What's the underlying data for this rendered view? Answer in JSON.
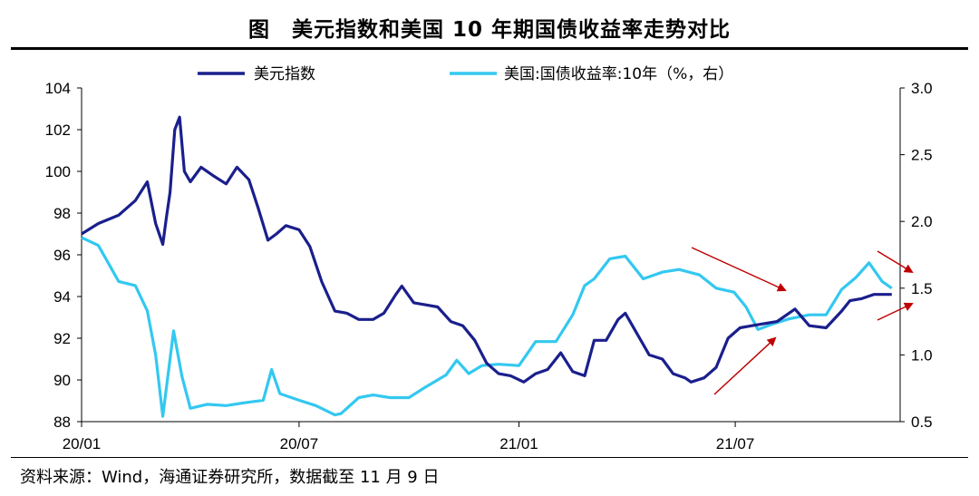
{
  "title": "图　美元指数和美国 10 年期国债收益率走势对比",
  "source": "资料来源：Wind，海通证券研究所，数据截至 11 月 9 日",
  "chart_data": {
    "type": "line",
    "x_ticks": [
      "20/01",
      "20/07",
      "21/01",
      "21/07"
    ],
    "y_left": {
      "min": 88,
      "max": 104,
      "ticks": [
        "88",
        "90",
        "92",
        "94",
        "96",
        "98",
        "100",
        "102",
        "104"
      ]
    },
    "y_right": {
      "min": 0.5,
      "max": 3.0,
      "ticks": [
        "0.5",
        "1.0",
        "1.5",
        "2.0",
        "2.5",
        "3.0"
      ]
    },
    "grid": false,
    "legend_position": "top",
    "series": [
      {
        "name": "美元指数",
        "axis": "left",
        "color": "#1a1f8c",
        "x": [
          "2020-01-01",
          "2020-01-15",
          "2020-02-01",
          "2020-02-15",
          "2020-02-25",
          "2020-03-03",
          "2020-03-09",
          "2020-03-12",
          "2020-03-15",
          "2020-03-19",
          "2020-03-23",
          "2020-03-27",
          "2020-04-01",
          "2020-04-10",
          "2020-04-20",
          "2020-05-01",
          "2020-05-10",
          "2020-05-20",
          "2020-05-28",
          "2020-06-05",
          "2020-06-12",
          "2020-06-20",
          "2020-07-01",
          "2020-07-10",
          "2020-07-20",
          "2020-07-31",
          "2020-08-10",
          "2020-08-20",
          "2020-09-01",
          "2020-09-10",
          "2020-09-20",
          "2020-09-25",
          "2020-10-05",
          "2020-10-15",
          "2020-10-25",
          "2020-11-05",
          "2020-11-15",
          "2020-11-25",
          "2020-12-05",
          "2020-12-15",
          "2020-12-25",
          "2021-01-05",
          "2021-01-15",
          "2021-01-25",
          "2021-02-05",
          "2021-02-15",
          "2021-02-25",
          "2021-03-05",
          "2021-03-15",
          "2021-03-25",
          "2021-03-31",
          "2021-04-10",
          "2021-04-20",
          "2021-05-01",
          "2021-05-10",
          "2021-05-20",
          "2021-05-25",
          "2021-06-05",
          "2021-06-15",
          "2021-06-25",
          "2021-07-05",
          "2021-07-15",
          "2021-07-25",
          "2021-08-05",
          "2021-08-15",
          "2021-08-20",
          "2021-09-01",
          "2021-09-15",
          "2021-09-28",
          "2021-10-05",
          "2021-10-15",
          "2021-10-25",
          "2021-11-09"
        ],
        "values": [
          97.0,
          97.5,
          97.9,
          98.6,
          99.5,
          97.5,
          96.5,
          97.8,
          99.0,
          102.0,
          102.6,
          100.0,
          99.5,
          100.2,
          99.8,
          99.4,
          100.2,
          99.6,
          98.2,
          96.7,
          97.0,
          97.4,
          97.2,
          96.4,
          94.7,
          93.3,
          93.2,
          92.9,
          92.9,
          93.2,
          94.1,
          94.5,
          93.7,
          93.6,
          93.5,
          92.8,
          92.6,
          91.9,
          90.8,
          90.3,
          90.2,
          89.9,
          90.3,
          90.5,
          91.3,
          90.4,
          90.2,
          91.9,
          91.9,
          92.9,
          93.2,
          92.2,
          91.2,
          91.0,
          90.3,
          90.1,
          89.9,
          90.1,
          90.6,
          92.0,
          92.5,
          92.6,
          92.7,
          92.8,
          93.2,
          93.4,
          92.6,
          92.5,
          93.3,
          93.8,
          93.9,
          94.1,
          94.1
        ]
      },
      {
        "name": "美国:国债收益率:10年（%，右）",
        "axis": "right",
        "color": "#33c8f0",
        "x": [
          "2020-01-01",
          "2020-01-15",
          "2020-02-01",
          "2020-02-15",
          "2020-02-25",
          "2020-03-03",
          "2020-03-09",
          "2020-03-18",
          "2020-03-25",
          "2020-04-01",
          "2020-04-15",
          "2020-05-01",
          "2020-05-15",
          "2020-06-01",
          "2020-06-08",
          "2020-06-15",
          "2020-07-01",
          "2020-07-15",
          "2020-07-31",
          "2020-08-05",
          "2020-08-20",
          "2020-09-01",
          "2020-09-15",
          "2020-10-01",
          "2020-10-15",
          "2020-11-01",
          "2020-11-10",
          "2020-11-20",
          "2020-12-01",
          "2020-12-15",
          "2021-01-01",
          "2021-01-15",
          "2021-02-01",
          "2021-02-15",
          "2021-02-25",
          "2021-03-05",
          "2021-03-18",
          "2021-03-31",
          "2021-04-15",
          "2021-05-01",
          "2021-05-15",
          "2021-06-01",
          "2021-06-15",
          "2021-06-30",
          "2021-07-10",
          "2021-07-20",
          "2021-08-01",
          "2021-08-15",
          "2021-09-01",
          "2021-09-15",
          "2021-09-28",
          "2021-10-10",
          "2021-10-21",
          "2021-11-01",
          "2021-11-09"
        ],
        "values": [
          1.88,
          1.82,
          1.55,
          1.52,
          1.33,
          1.0,
          0.54,
          1.18,
          0.84,
          0.6,
          0.63,
          0.62,
          0.64,
          0.66,
          0.89,
          0.71,
          0.66,
          0.62,
          0.55,
          0.56,
          0.68,
          0.7,
          0.68,
          0.68,
          0.76,
          0.85,
          0.96,
          0.86,
          0.92,
          0.93,
          0.92,
          1.1,
          1.1,
          1.3,
          1.52,
          1.57,
          1.72,
          1.74,
          1.57,
          1.62,
          1.64,
          1.6,
          1.5,
          1.47,
          1.36,
          1.19,
          1.23,
          1.27,
          1.3,
          1.3,
          1.49,
          1.58,
          1.69,
          1.55,
          1.5
        ]
      }
    ],
    "annotations": [
      "red-arrow-down-1",
      "red-arrow-up-1",
      "red-arrow-down-2",
      "red-arrow-up-2"
    ]
  }
}
